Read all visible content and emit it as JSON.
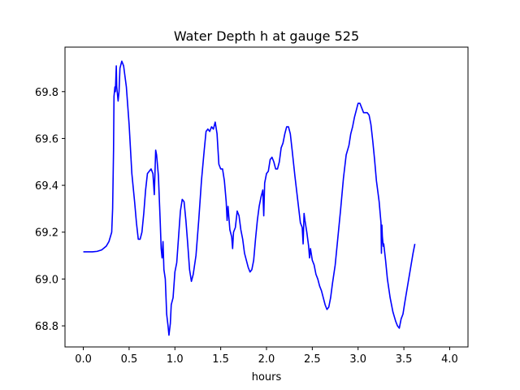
{
  "chart_data": {
    "type": "line",
    "title": "Water Depth h at gauge 525",
    "xlabel": "hours",
    "ylabel": "",
    "xlim": [
      -0.2,
      4.2
    ],
    "ylim": [
      68.71,
      69.99
    ],
    "xticks": [
      {
        "value": 0.0,
        "label": "0.0"
      },
      {
        "value": 0.5,
        "label": "0.5"
      },
      {
        "value": 1.0,
        "label": "1.0"
      },
      {
        "value": 1.5,
        "label": "1.5"
      },
      {
        "value": 2.0,
        "label": "2.0"
      },
      {
        "value": 2.5,
        "label": "2.5"
      },
      {
        "value": 3.0,
        "label": "3.0"
      },
      {
        "value": 3.5,
        "label": "3.5"
      },
      {
        "value": 4.0,
        "label": "4.0"
      }
    ],
    "yticks": [
      {
        "value": 68.8,
        "label": "68.8"
      },
      {
        "value": 69.0,
        "label": "69.0"
      },
      {
        "value": 69.2,
        "label": "69.2"
      },
      {
        "value": 69.4,
        "label": "69.4"
      },
      {
        "value": 69.6,
        "label": "69.6"
      },
      {
        "value": 69.8,
        "label": "69.8"
      }
    ],
    "grid": false,
    "legend": "none",
    "series": [
      {
        "color": "#0000ff",
        "points": [
          [
            0.0,
            69.116
          ],
          [
            0.1,
            69.116
          ],
          [
            0.15,
            69.118
          ],
          [
            0.2,
            69.124
          ],
          [
            0.25,
            69.14
          ],
          [
            0.28,
            69.16
          ],
          [
            0.31,
            69.2
          ],
          [
            0.32,
            69.3
          ],
          [
            0.33,
            69.55
          ],
          [
            0.335,
            69.78
          ],
          [
            0.345,
            69.82
          ],
          [
            0.35,
            69.8
          ],
          [
            0.36,
            69.91
          ],
          [
            0.365,
            69.82
          ],
          [
            0.38,
            69.76
          ],
          [
            0.39,
            69.8
          ],
          [
            0.4,
            69.9
          ],
          [
            0.42,
            69.93
          ],
          [
            0.44,
            69.91
          ],
          [
            0.47,
            69.82
          ],
          [
            0.5,
            69.66
          ],
          [
            0.53,
            69.45
          ],
          [
            0.56,
            69.33
          ],
          [
            0.58,
            69.24
          ],
          [
            0.6,
            69.17
          ],
          [
            0.62,
            69.17
          ],
          [
            0.64,
            69.2
          ],
          [
            0.66,
            69.28
          ],
          [
            0.68,
            69.38
          ],
          [
            0.7,
            69.45
          ],
          [
            0.72,
            69.46
          ],
          [
            0.74,
            69.47
          ],
          [
            0.76,
            69.45
          ],
          [
            0.775,
            69.36
          ],
          [
            0.79,
            69.55
          ],
          [
            0.8,
            69.53
          ],
          [
            0.82,
            69.44
          ],
          [
            0.84,
            69.24
          ],
          [
            0.85,
            69.13
          ],
          [
            0.86,
            69.09
          ],
          [
            0.87,
            69.16
          ],
          [
            0.88,
            69.04
          ],
          [
            0.895,
            69.0
          ],
          [
            0.91,
            68.85
          ],
          [
            0.925,
            68.8
          ],
          [
            0.935,
            68.76
          ],
          [
            0.95,
            68.81
          ],
          [
            0.96,
            68.89
          ],
          [
            0.98,
            68.92
          ],
          [
            1.0,
            69.03
          ],
          [
            1.02,
            69.07
          ],
          [
            1.04,
            69.18
          ],
          [
            1.06,
            69.29
          ],
          [
            1.08,
            69.34
          ],
          [
            1.1,
            69.33
          ],
          [
            1.12,
            69.25
          ],
          [
            1.14,
            69.15
          ],
          [
            1.16,
            69.04
          ],
          [
            1.18,
            68.99
          ],
          [
            1.2,
            69.02
          ],
          [
            1.23,
            69.1
          ],
          [
            1.26,
            69.25
          ],
          [
            1.29,
            69.42
          ],
          [
            1.32,
            69.55
          ],
          [
            1.34,
            69.63
          ],
          [
            1.36,
            69.64
          ],
          [
            1.38,
            69.63
          ],
          [
            1.4,
            69.65
          ],
          [
            1.42,
            69.64
          ],
          [
            1.44,
            69.67
          ],
          [
            1.46,
            69.62
          ],
          [
            1.48,
            69.49
          ],
          [
            1.5,
            69.47
          ],
          [
            1.52,
            69.47
          ],
          [
            1.54,
            69.42
          ],
          [
            1.56,
            69.33
          ],
          [
            1.57,
            69.25
          ],
          [
            1.58,
            69.31
          ],
          [
            1.6,
            69.21
          ],
          [
            1.62,
            69.18
          ],
          [
            1.63,
            69.13
          ],
          [
            1.64,
            69.2
          ],
          [
            1.66,
            69.22
          ],
          [
            1.68,
            69.29
          ],
          [
            1.7,
            69.27
          ],
          [
            1.72,
            69.21
          ],
          [
            1.74,
            69.17
          ],
          [
            1.76,
            69.11
          ],
          [
            1.78,
            69.08
          ],
          [
            1.8,
            69.05
          ],
          [
            1.82,
            69.03
          ],
          [
            1.84,
            69.04
          ],
          [
            1.86,
            69.08
          ],
          [
            1.88,
            69.17
          ],
          [
            1.9,
            69.25
          ],
          [
            1.92,
            69.31
          ],
          [
            1.94,
            69.35
          ],
          [
            1.96,
            69.38
          ],
          [
            1.97,
            69.27
          ],
          [
            1.98,
            69.41
          ],
          [
            2.0,
            69.45
          ],
          [
            2.02,
            69.46
          ],
          [
            2.04,
            69.51
          ],
          [
            2.06,
            69.52
          ],
          [
            2.08,
            69.5
          ],
          [
            2.1,
            69.47
          ],
          [
            2.12,
            69.47
          ],
          [
            2.14,
            69.5
          ],
          [
            2.16,
            69.56
          ],
          [
            2.18,
            69.58
          ],
          [
            2.2,
            69.62
          ],
          [
            2.22,
            69.65
          ],
          [
            2.24,
            69.65
          ],
          [
            2.26,
            69.62
          ],
          [
            2.28,
            69.55
          ],
          [
            2.31,
            69.44
          ],
          [
            2.34,
            69.34
          ],
          [
            2.37,
            69.24
          ],
          [
            2.39,
            69.22
          ],
          [
            2.4,
            69.15
          ],
          [
            2.41,
            69.28
          ],
          [
            2.42,
            69.25
          ],
          [
            2.44,
            69.2
          ],
          [
            2.46,
            69.14
          ],
          [
            2.47,
            69.09
          ],
          [
            2.48,
            69.13
          ],
          [
            2.5,
            69.08
          ],
          [
            2.52,
            69.06
          ],
          [
            2.54,
            69.02
          ],
          [
            2.56,
            69.0
          ],
          [
            2.58,
            68.97
          ],
          [
            2.6,
            68.95
          ],
          [
            2.62,
            68.92
          ],
          [
            2.64,
            68.89
          ],
          [
            2.66,
            68.87
          ],
          [
            2.68,
            68.88
          ],
          [
            2.7,
            68.92
          ],
          [
            2.72,
            68.98
          ],
          [
            2.75,
            69.06
          ],
          [
            2.78,
            69.18
          ],
          [
            2.81,
            69.3
          ],
          [
            2.84,
            69.43
          ],
          [
            2.87,
            69.53
          ],
          [
            2.9,
            69.57
          ],
          [
            2.92,
            69.62
          ],
          [
            2.94,
            69.65
          ],
          [
            2.96,
            69.69
          ],
          [
            2.98,
            69.72
          ],
          [
            3.0,
            69.75
          ],
          [
            3.02,
            69.75
          ],
          [
            3.04,
            69.73
          ],
          [
            3.06,
            69.71
          ],
          [
            3.1,
            69.71
          ],
          [
            3.12,
            69.7
          ],
          [
            3.14,
            69.66
          ],
          [
            3.16,
            69.59
          ],
          [
            3.18,
            69.51
          ],
          [
            3.2,
            69.42
          ],
          [
            3.23,
            69.33
          ],
          [
            3.25,
            69.24
          ],
          [
            3.255,
            69.11
          ],
          [
            3.26,
            69.23
          ],
          [
            3.265,
            69.18
          ],
          [
            3.275,
            69.14
          ],
          [
            3.28,
            69.15
          ],
          [
            3.3,
            69.08
          ],
          [
            3.32,
            69.0
          ],
          [
            3.35,
            68.92
          ],
          [
            3.38,
            68.86
          ],
          [
            3.41,
            68.82
          ],
          [
            3.43,
            68.8
          ],
          [
            3.45,
            68.79
          ],
          [
            3.47,
            68.83
          ],
          [
            3.49,
            68.85
          ],
          [
            3.51,
            68.9
          ],
          [
            3.54,
            68.97
          ],
          [
            3.57,
            69.04
          ],
          [
            3.6,
            69.11
          ],
          [
            3.62,
            69.15
          ]
        ]
      }
    ]
  }
}
